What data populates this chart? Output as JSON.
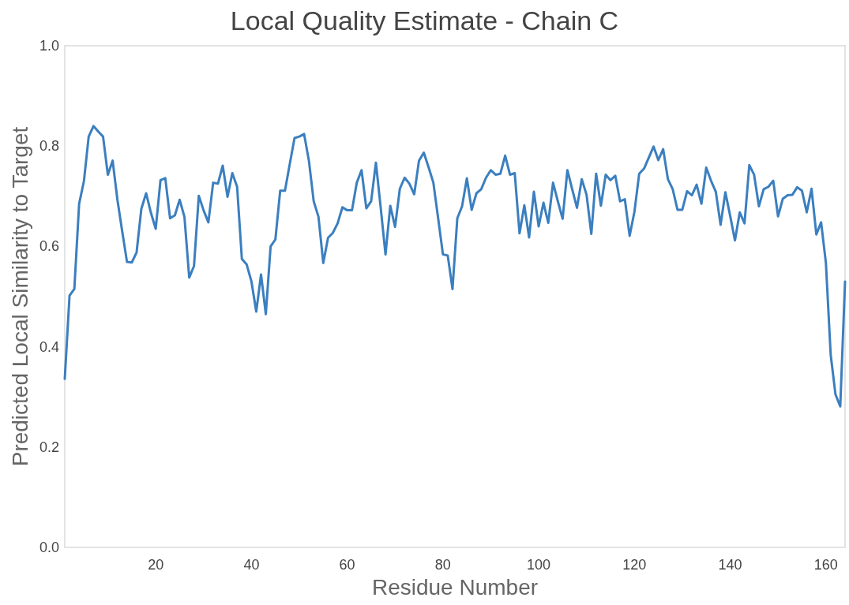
{
  "chart_data": {
    "type": "line",
    "title": "Local Quality Estimate - Chain C",
    "xlabel": "Residue Number",
    "ylabel": "Predicted Local Similarity to Target",
    "x": [
      1,
      2,
      3,
      4,
      5,
      6,
      7,
      8,
      9,
      10,
      11,
      12,
      13,
      14,
      15,
      16,
      17,
      18,
      19,
      20,
      21,
      22,
      23,
      24,
      25,
      26,
      27,
      28,
      29,
      30,
      31,
      32,
      33,
      34,
      35,
      36,
      37,
      38,
      39,
      40,
      41,
      42,
      43,
      44,
      45,
      46,
      47,
      48,
      49,
      50,
      51,
      52,
      53,
      54,
      55,
      56,
      57,
      58,
      59,
      60,
      61,
      62,
      63,
      64,
      65,
      66,
      67,
      68,
      69,
      70,
      71,
      72,
      73,
      74,
      75,
      76,
      77,
      78,
      79,
      80,
      81,
      82,
      83,
      84,
      85,
      86,
      87,
      88,
      89,
      90,
      91,
      92,
      93,
      94,
      95,
      96,
      97,
      98,
      99,
      100,
      101,
      102,
      103,
      104,
      105,
      106,
      107,
      108,
      109,
      110,
      111,
      112,
      113,
      114,
      115,
      116,
      117,
      118,
      119,
      120,
      121,
      122,
      123,
      124,
      125,
      126,
      127,
      128,
      129,
      130,
      131,
      132,
      133,
      134,
      135,
      136,
      137,
      138,
      139,
      140,
      141,
      142,
      143,
      144,
      145,
      146,
      147,
      148,
      149,
      150,
      151,
      152,
      153,
      154,
      155,
      156,
      157,
      158,
      159,
      160,
      161,
      162,
      163,
      164
    ],
    "series": [
      {
        "color": "#3b7fbf",
        "values": [
          0.336,
          0.502,
          0.515,
          0.685,
          0.73,
          0.819,
          0.84,
          0.829,
          0.819,
          0.743,
          0.771,
          0.693,
          0.63,
          0.569,
          0.568,
          0.588,
          0.675,
          0.706,
          0.667,
          0.635,
          0.732,
          0.736,
          0.656,
          0.662,
          0.693,
          0.659,
          0.538,
          0.561,
          0.701,
          0.672,
          0.648,
          0.727,
          0.725,
          0.761,
          0.699,
          0.746,
          0.719,
          0.575,
          0.564,
          0.53,
          0.47,
          0.544,
          0.465,
          0.6,
          0.614,
          0.711,
          0.711,
          0.764,
          0.816,
          0.819,
          0.824,
          0.771,
          0.69,
          0.659,
          0.567,
          0.617,
          0.627,
          0.646,
          0.678,
          0.672,
          0.672,
          0.727,
          0.752,
          0.676,
          0.69,
          0.767,
          0.677,
          0.584,
          0.681,
          0.639,
          0.715,
          0.737,
          0.725,
          0.704,
          0.771,
          0.787,
          0.758,
          0.727,
          0.656,
          0.584,
          0.582,
          0.515,
          0.656,
          0.68,
          0.736,
          0.673,
          0.706,
          0.714,
          0.737,
          0.752,
          0.743,
          0.745,
          0.781,
          0.743,
          0.746,
          0.626,
          0.682,
          0.618,
          0.709,
          0.64,
          0.687,
          0.647,
          0.727,
          0.69,
          0.655,
          0.752,
          0.714,
          0.677,
          0.734,
          0.703,
          0.625,
          0.745,
          0.681,
          0.743,
          0.732,
          0.741,
          0.69,
          0.694,
          0.621,
          0.669,
          0.745,
          0.755,
          0.777,
          0.799,
          0.772,
          0.794,
          0.734,
          0.714,
          0.673,
          0.673,
          0.71,
          0.702,
          0.723,
          0.685,
          0.757,
          0.731,
          0.709,
          0.643,
          0.708,
          0.661,
          0.612,
          0.668,
          0.646,
          0.762,
          0.743,
          0.68,
          0.714,
          0.719,
          0.731,
          0.66,
          0.695,
          0.702,
          0.703,
          0.718,
          0.711,
          0.668,
          0.715,
          0.624,
          0.648,
          0.567,
          0.384,
          0.305,
          0.281,
          0.53
        ]
      }
    ],
    "xlim": [
      1,
      164
    ],
    "xticks": [
      20,
      40,
      60,
      80,
      100,
      120,
      140,
      160
    ],
    "ylim": [
      0,
      1
    ],
    "yticks": [
      {
        "value": 0,
        "label": "0.0"
      },
      0.2,
      0.4,
      0.6,
      0.8,
      {
        "value": 1,
        "label": "1.0"
      }
    ],
    "grid": false,
    "marker": "none",
    "line_style": "solid"
  }
}
